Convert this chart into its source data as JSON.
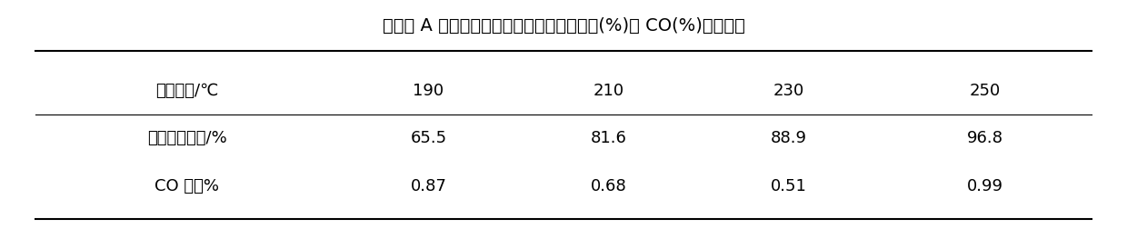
{
  "title": "催化剂 A 不同反应温度对应的甲醇转化速率(%)和 CO(%)百分含量",
  "col_labels": [
    "",
    "190",
    "210",
    "230",
    "250"
  ],
  "row_labels": [
    "反应温度/℃",
    "甲醇的转化率/%",
    "CO 含量%"
  ],
  "row1_values": [
    "190",
    "210",
    "230",
    "250"
  ],
  "row2_values": [
    "65.5",
    "81.6",
    "88.9",
    "96.8"
  ],
  "row3_values": [
    "0.87",
    "0.68",
    "0.51",
    "0.99"
  ],
  "background_color": "#ffffff",
  "text_color": "#000000",
  "title_fontsize": 14,
  "cell_fontsize": 13
}
